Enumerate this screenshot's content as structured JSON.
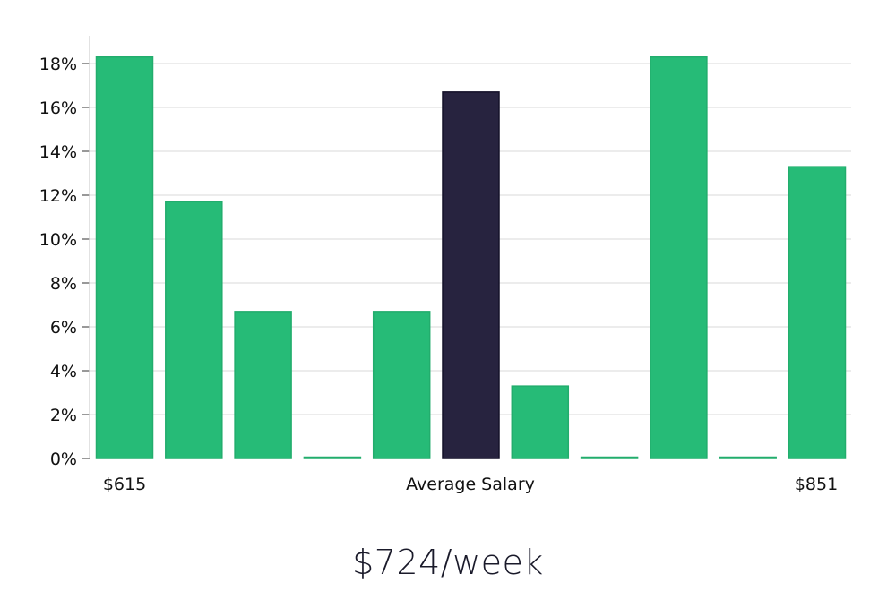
{
  "chart_data": {
    "type": "bar",
    "categories": [
      "",
      "",
      "",
      "",
      "",
      "",
      "",
      "",
      "",
      "",
      ""
    ],
    "values": [
      18.3,
      11.7,
      6.7,
      0,
      6.7,
      16.7,
      3.3,
      0,
      18.3,
      0,
      13.3
    ],
    "highlight_index": 5,
    "ylim": [
      0,
      19
    ],
    "yticks": [
      0,
      2,
      4,
      6,
      8,
      10,
      12,
      14,
      16,
      18
    ],
    "ytick_suffix": "%",
    "x_labels": {
      "left": "$615",
      "center": "Average Salary",
      "right": "$851"
    },
    "grid": true,
    "colors": {
      "bar": "#26BB77",
      "highlight": "#27233F",
      "grid": "#e6e6e6",
      "axis": "#d8d8d8",
      "text": "#111111"
    }
  },
  "headline": "$724/week"
}
